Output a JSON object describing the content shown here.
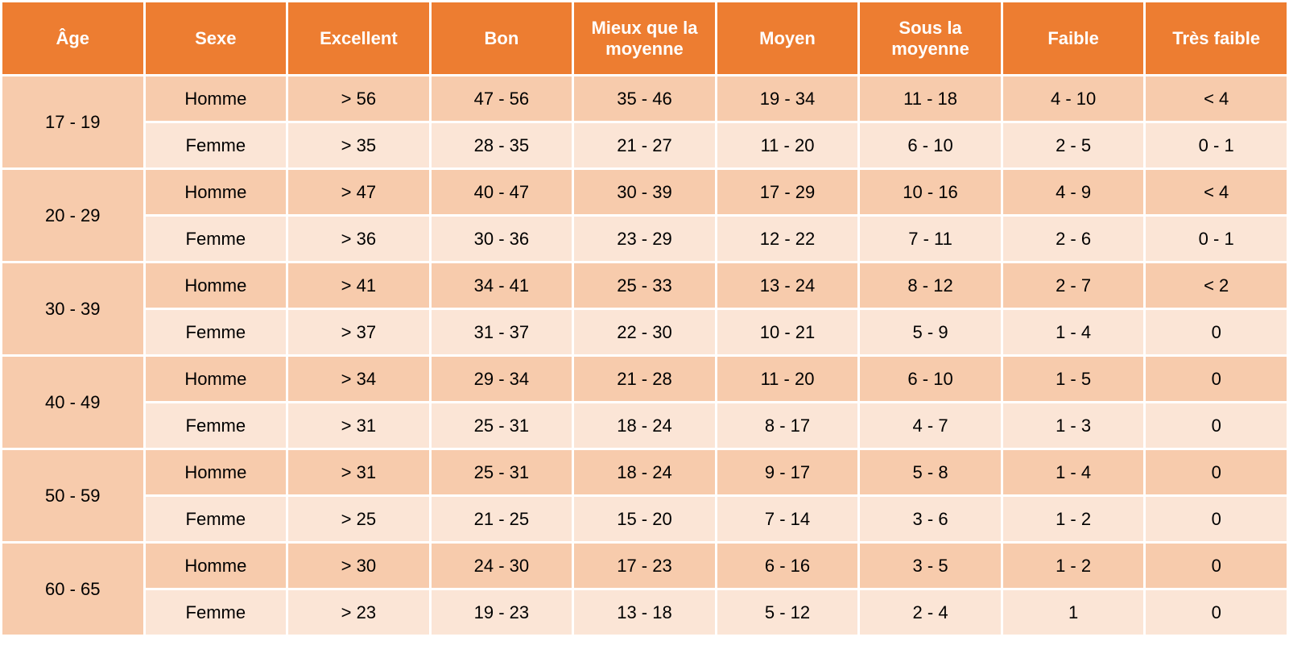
{
  "table": {
    "type": "table",
    "header_bg": "#ed7d31",
    "header_fg": "#ffffff",
    "row_bg_a": "#f7cbac",
    "row_bg_b": "#fbe5d6",
    "border_color": "#ffffff",
    "text_color": "#000000",
    "font_size": 22,
    "columns": [
      "Âge",
      "Sexe",
      "Excellent",
      "Bon",
      "Mieux que la moyenne",
      "Moyen",
      "Sous la moyenne",
      "Faible",
      "Très faible"
    ],
    "groups": [
      {
        "age": "17 - 19",
        "rows": [
          {
            "sex": "Homme",
            "values": [
              "> 56",
              "47 - 56",
              "35 - 46",
              "19 - 34",
              "11 - 18",
              "4 - 10",
              "< 4"
            ]
          },
          {
            "sex": "Femme",
            "values": [
              "> 35",
              "28 - 35",
              "21 - 27",
              "11 - 20",
              "6 - 10",
              "2 - 5",
              "0 - 1"
            ]
          }
        ]
      },
      {
        "age": "20 - 29",
        "rows": [
          {
            "sex": "Homme",
            "values": [
              "> 47",
              "40 - 47",
              "30 - 39",
              "17 - 29",
              "10 - 16",
              "4 - 9",
              "< 4"
            ]
          },
          {
            "sex": "Femme",
            "values": [
              "> 36",
              "30 - 36",
              "23 - 29",
              "12 - 22",
              "7 - 11",
              "2 - 6",
              "0 - 1"
            ]
          }
        ]
      },
      {
        "age": "30 - 39",
        "rows": [
          {
            "sex": "Homme",
            "values": [
              "> 41",
              "34 - 41",
              "25 - 33",
              "13 - 24",
              "8 - 12",
              "2 - 7",
              "< 2"
            ]
          },
          {
            "sex": "Femme",
            "values": [
              "> 37",
              "31 - 37",
              "22 - 30",
              "10 - 21",
              "5 - 9",
              "1 - 4",
              "0"
            ]
          }
        ]
      },
      {
        "age": "40 - 49",
        "rows": [
          {
            "sex": "Homme",
            "values": [
              "> 34",
              "29 - 34",
              "21 - 28",
              "11 - 20",
              "6 - 10",
              "1 - 5",
              "0"
            ]
          },
          {
            "sex": "Femme",
            "values": [
              "> 31",
              "25 - 31",
              "18 - 24",
              "8 - 17",
              "4 - 7",
              "1 - 3",
              "0"
            ]
          }
        ]
      },
      {
        "age": "50 - 59",
        "rows": [
          {
            "sex": "Homme",
            "values": [
              "> 31",
              "25 - 31",
              "18 - 24",
              "9 - 17",
              "5 - 8",
              "1 - 4",
              "0"
            ]
          },
          {
            "sex": "Femme",
            "values": [
              "> 25",
              "21 - 25",
              "15 - 20",
              "7 - 14",
              "3 - 6",
              "1 - 2",
              "0"
            ]
          }
        ]
      },
      {
        "age": "60 - 65",
        "rows": [
          {
            "sex": "Homme",
            "values": [
              "> 30",
              "24 - 30",
              "17 - 23",
              "6 - 16",
              "3 - 5",
              "1 - 2",
              "0"
            ]
          },
          {
            "sex": "Femme",
            "values": [
              "> 23",
              "19 - 23",
              "13 - 18",
              "5 - 12",
              "2 - 4",
              "1",
              "0"
            ]
          }
        ]
      }
    ]
  }
}
